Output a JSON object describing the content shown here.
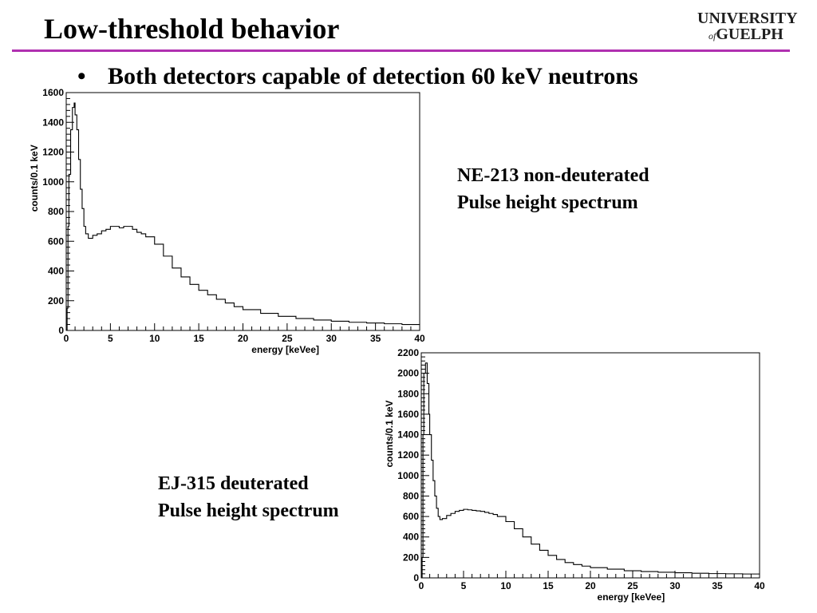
{
  "slide": {
    "title": "Low-threshold behavior",
    "bullet": "Both detectors capable of detection 60 keV neutrons",
    "rule_color": "#b030b0"
  },
  "logo": {
    "line1": "UNIVERSITY",
    "line2_small": "of",
    "line2_main": "GUELPH"
  },
  "captions": {
    "top_right": [
      "NE-213 non-deuterated",
      "Pulse height spectrum"
    ],
    "bottom_left": [
      "EJ-315 deuterated",
      "Pulse height spectrum"
    ]
  },
  "chart_data": [
    {
      "type": "line",
      "style": "step-histogram",
      "xlabel": "energy [keVee]",
      "ylabel": "counts/0.1 keV",
      "xlim": [
        0,
        40
      ],
      "ylim": [
        0,
        1600
      ],
      "xticks": [
        0,
        5,
        10,
        15,
        20,
        25,
        30,
        35,
        40
      ],
      "yticks": [
        0,
        200,
        400,
        600,
        800,
        1000,
        1200,
        1400,
        1600
      ],
      "series": [
        {
          "x": [
            0,
            0.1,
            0.2,
            0.3,
            0.5,
            0.7,
            0.9,
            1.0,
            1.2,
            1.4,
            1.6,
            1.8,
            2.0,
            2.2,
            2.5,
            3.0,
            3.5,
            4.0,
            4.5,
            5.0,
            5.5,
            6.0,
            6.5,
            7.0,
            7.5,
            8.0,
            8.5,
            9.0,
            10.0,
            11.0,
            12.0,
            13.0,
            14.0,
            15.0,
            16.0,
            17.0,
            18.0,
            19.0,
            20.0,
            22.0,
            24.0,
            26.0,
            28.0,
            30.0,
            32.0,
            34.0,
            36.0,
            38.0,
            40.0
          ],
          "y": [
            0,
            150,
            700,
            1050,
            1350,
            1500,
            1530,
            1450,
            1350,
            1150,
            950,
            820,
            700,
            650,
            620,
            640,
            650,
            670,
            680,
            700,
            700,
            690,
            700,
            700,
            680,
            660,
            650,
            630,
            580,
            500,
            420,
            360,
            310,
            270,
            240,
            210,
            185,
            160,
            140,
            115,
            95,
            80,
            70,
            62,
            55,
            50,
            45,
            40,
            38
          ]
        }
      ]
    },
    {
      "type": "line",
      "style": "step-histogram",
      "xlabel": "energy [keVee]",
      "ylabel": "counts/0.1 keV",
      "xlim": [
        0,
        40
      ],
      "ylim": [
        0,
        2200
      ],
      "xticks": [
        0,
        5,
        10,
        15,
        20,
        25,
        30,
        35,
        40
      ],
      "yticks": [
        0,
        200,
        400,
        600,
        800,
        1000,
        1200,
        1400,
        1600,
        1800,
        2000,
        2200
      ],
      "series": [
        {
          "x": [
            0,
            0.1,
            0.2,
            0.3,
            0.5,
            0.7,
            0.9,
            1.0,
            1.2,
            1.4,
            1.6,
            1.8,
            2.0,
            2.2,
            2.5,
            3.0,
            3.5,
            4.0,
            4.5,
            5.0,
            5.5,
            6.0,
            6.5,
            7.0,
            7.5,
            8.0,
            8.5,
            9.0,
            10.0,
            11.0,
            12.0,
            13.0,
            14.0,
            15.0,
            16.0,
            17.0,
            18.0,
            19.0,
            20.0,
            22.0,
            24.0,
            26.0,
            28.0,
            30.0,
            32.0,
            34.0,
            36.0,
            38.0,
            40.0
          ],
          "y": [
            0,
            200,
            1400,
            2000,
            2100,
            1900,
            1600,
            1400,
            1150,
            950,
            800,
            680,
            600,
            570,
            580,
            610,
            630,
            650,
            660,
            670,
            665,
            660,
            655,
            650,
            640,
            630,
            620,
            600,
            550,
            480,
            400,
            330,
            270,
            220,
            180,
            150,
            130,
            115,
            100,
            85,
            70,
            62,
            55,
            50,
            45,
            42,
            40,
            38,
            36
          ]
        }
      ]
    }
  ]
}
